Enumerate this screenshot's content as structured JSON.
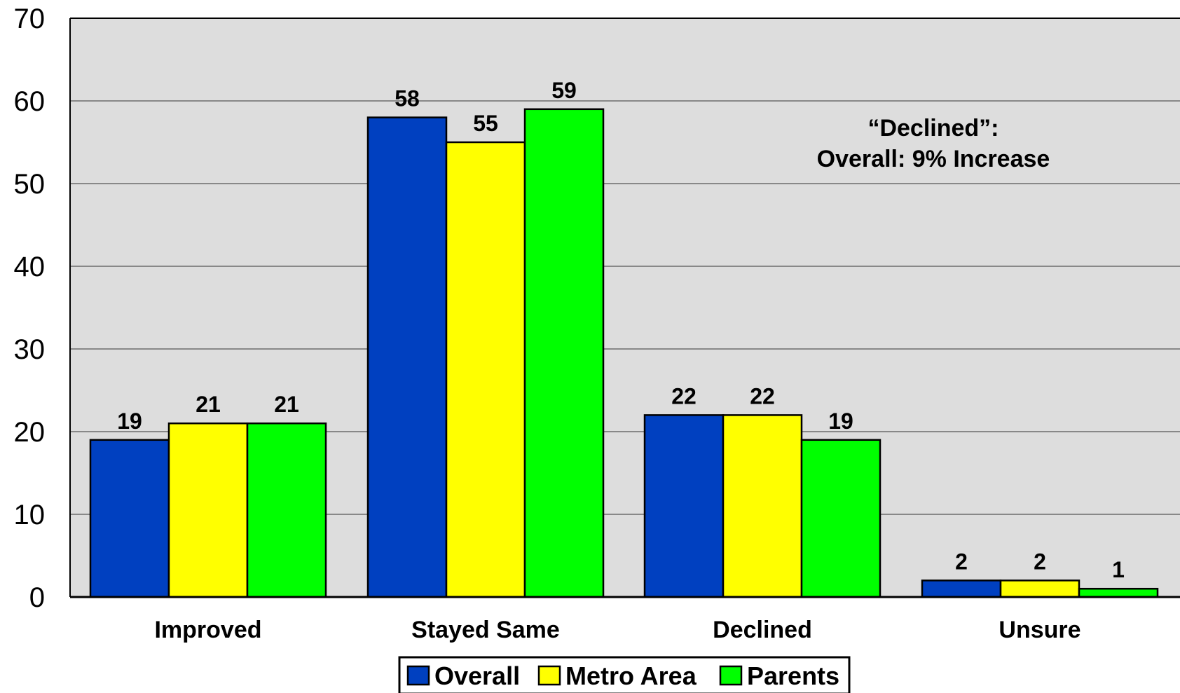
{
  "chart_data": {
    "type": "bar",
    "title": "",
    "xlabel": "",
    "ylabel": "",
    "ylim": [
      0,
      70
    ],
    "yticks": [
      0,
      10,
      20,
      30,
      40,
      50,
      60,
      70
    ],
    "grid": true,
    "legend_position": "bottom",
    "categories": [
      "Improved",
      "Stayed Same",
      "Declined",
      "Unsure"
    ],
    "series": [
      {
        "name": "Overall",
        "color": "#0040C0",
        "values": [
          19,
          58,
          22,
          2
        ]
      },
      {
        "name": "Metro Area",
        "color": "#FFFF00",
        "values": [
          21,
          55,
          22,
          2
        ]
      },
      {
        "name": "Parents",
        "color": "#00FF00",
        "values": [
          21,
          59,
          19,
          1
        ]
      }
    ],
    "annotation": [
      "“Declined”:",
      "Overall: 9% Increase"
    ],
    "plot_background": "#DDDDDD"
  }
}
